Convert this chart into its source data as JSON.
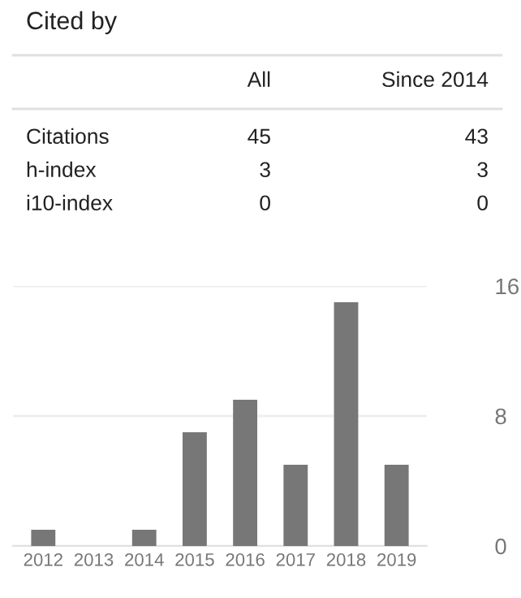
{
  "chart_data": [
    {
      "type": "other",
      "title": "Cited by",
      "annotations": [
        "All",
        "Since 2014",
        "Citations",
        "45",
        "43",
        "h-index",
        "3",
        "3",
        "i10-index",
        "0",
        "0"
      ]
    },
    {
      "type": "bar",
      "categories": [
        "2012",
        "2013",
        "2014",
        "2015",
        "2016",
        "2017",
        "2018",
        "2019"
      ],
      "values": [
        1,
        0,
        1,
        7,
        9,
        5,
        15,
        5
      ],
      "color": "#777777",
      "ylim": [
        0,
        16
      ],
      "yticks": [
        0,
        8,
        16
      ],
      "grid": "y"
    }
  ]
}
